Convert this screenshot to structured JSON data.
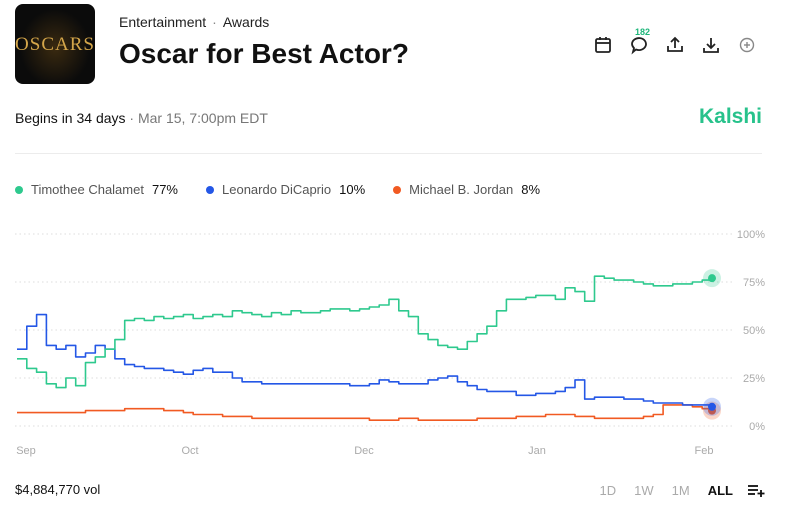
{
  "header": {
    "thumb_text": "OSCARS",
    "breadcrumb": [
      "Entertainment",
      "Awards"
    ],
    "title": "Oscar for Best Actor?",
    "comment_count": "182"
  },
  "info": {
    "begins": "Begins in 34 days",
    "date": "· Mar 15, 7:00pm EDT",
    "brand": "Kalshi"
  },
  "legend": [
    {
      "name": "Timothee Chalamet",
      "pct": "77%",
      "color": "#2ec98e"
    },
    {
      "name": "Leonardo DiCaprio",
      "pct": "10%",
      "color": "#2457e6"
    },
    {
      "name": "Michael B. Jordan",
      "pct": "8%",
      "color": "#f15a22"
    }
  ],
  "footer": {
    "volume": "$4,884,770 vol",
    "ranges": [
      "1D",
      "1W",
      "1M",
      "ALL"
    ],
    "active_range": "ALL"
  },
  "chart_data": {
    "type": "line",
    "x_ticks": [
      "Sep",
      "Oct",
      "Dec",
      "Jan",
      "Feb"
    ],
    "y_ticks": [
      "100%",
      "75%",
      "50%",
      "25%",
      "0%"
    ],
    "ylim": [
      0,
      100
    ],
    "grid": true,
    "series": [
      {
        "name": "Timothee Chalamet",
        "color": "#2ec98e",
        "values": [
          35,
          30,
          28,
          22,
          20,
          25,
          21,
          33,
          36,
          40,
          45,
          55,
          56,
          55,
          57,
          56,
          57,
          58,
          56,
          57,
          58,
          57,
          60,
          59,
          58,
          57,
          59,
          58,
          60,
          59,
          59,
          60,
          61,
          61,
          60,
          61,
          62,
          63,
          66,
          60,
          57,
          48,
          45,
          42,
          41,
          40,
          44,
          48,
          52,
          60,
          66,
          66,
          67,
          68,
          68,
          66,
          72,
          70,
          65,
          78,
          77,
          76,
          76,
          75,
          74,
          73,
          73,
          74,
          74,
          75,
          76,
          77
        ]
      },
      {
        "name": "Leonardo DiCaprio",
        "color": "#2457e6",
        "values": [
          40,
          52,
          58,
          42,
          40,
          42,
          36,
          38,
          42,
          40,
          35,
          32,
          31,
          30,
          30,
          29,
          28,
          27,
          29,
          30,
          28,
          28,
          25,
          23,
          23,
          22,
          22,
          22,
          22,
          22,
          22,
          22,
          22,
          22,
          21,
          21,
          22,
          24,
          23,
          22,
          22,
          22,
          24,
          25,
          26,
          23,
          21,
          19,
          18,
          18,
          18,
          16,
          16,
          17,
          17,
          18,
          20,
          24,
          14,
          15,
          15,
          15,
          14,
          14,
          13,
          12,
          12,
          12,
          11,
          11,
          11,
          10
        ]
      },
      {
        "name": "Michael B. Jordan",
        "color": "#f15a22",
        "values": [
          7,
          7,
          7,
          7,
          7,
          7,
          7,
          8,
          8,
          8,
          8,
          9,
          9,
          9,
          9,
          8,
          8,
          7,
          6,
          6,
          6,
          5,
          5,
          5,
          4,
          4,
          4,
          4,
          4,
          4,
          4,
          4,
          4,
          4,
          4,
          4,
          3,
          3,
          3,
          4,
          4,
          3,
          3,
          3,
          3,
          3,
          3,
          4,
          4,
          4,
          4,
          5,
          5,
          5,
          6,
          6,
          6,
          5,
          5,
          4,
          4,
          4,
          4,
          4,
          5,
          6,
          11,
          11,
          11,
          10,
          9,
          8
        ]
      }
    ]
  }
}
